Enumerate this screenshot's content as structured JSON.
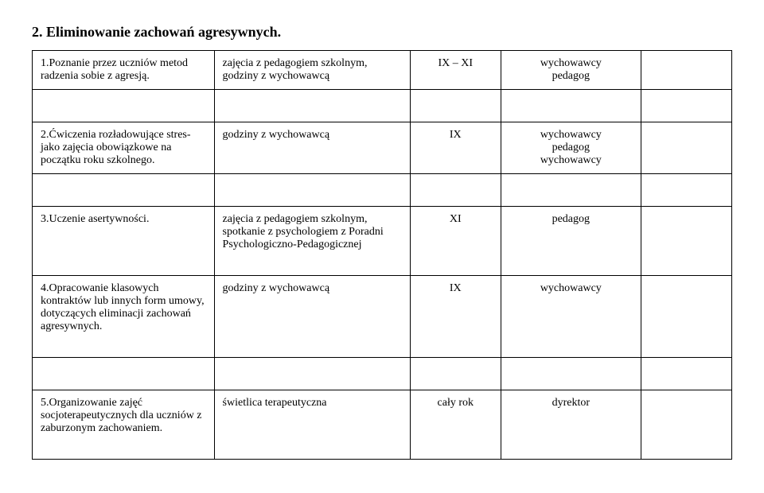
{
  "section_title": "2. Eliminowanie zachowań agresywnych.",
  "rows": [
    {
      "c0": "1.Poznanie przez uczniów metod radzenia sobie z agresją.",
      "c1": "zajęcia z pedagogiem szkolnym, godziny z wychowawcą",
      "c2": "IX – XI",
      "c3": "wychowawcy\npedagog",
      "c4": ""
    },
    {
      "c0": "2.Ćwiczenia rozładowujące stres- jako   zajęcia obowiązkowe na początku roku szkolnego.",
      "c1": "godziny z wychowawcą",
      "c2": "IX",
      "c3": "wychowawcy\npedagog\nwychowawcy",
      "c4": ""
    },
    {
      "c0": "3.Uczenie asertywności.",
      "c1": "zajęcia z pedagogiem szkolnym, spotkanie z psychologiem z Poradni Psychologiczno-Pedagogicznej",
      "c2": "XI",
      "c3": "pedagog",
      "c4": ""
    },
    {
      "c0": "4.Opracowanie klasowych kontraktów lub innych form umowy, dotyczących eliminacji zachowań agresywnych.",
      "c1": "godziny z wychowawcą",
      "c2": "IX",
      "c3": "wychowawcy",
      "c4": ""
    },
    {
      "c0": "5.Organizowanie zajęć socjoterapeutycznych dla uczniów z zaburzonym zachowaniem.",
      "c1": "świetlica terapeutyczna",
      "c2": "cały rok",
      "c3": "dyrektor",
      "c4": ""
    }
  ]
}
